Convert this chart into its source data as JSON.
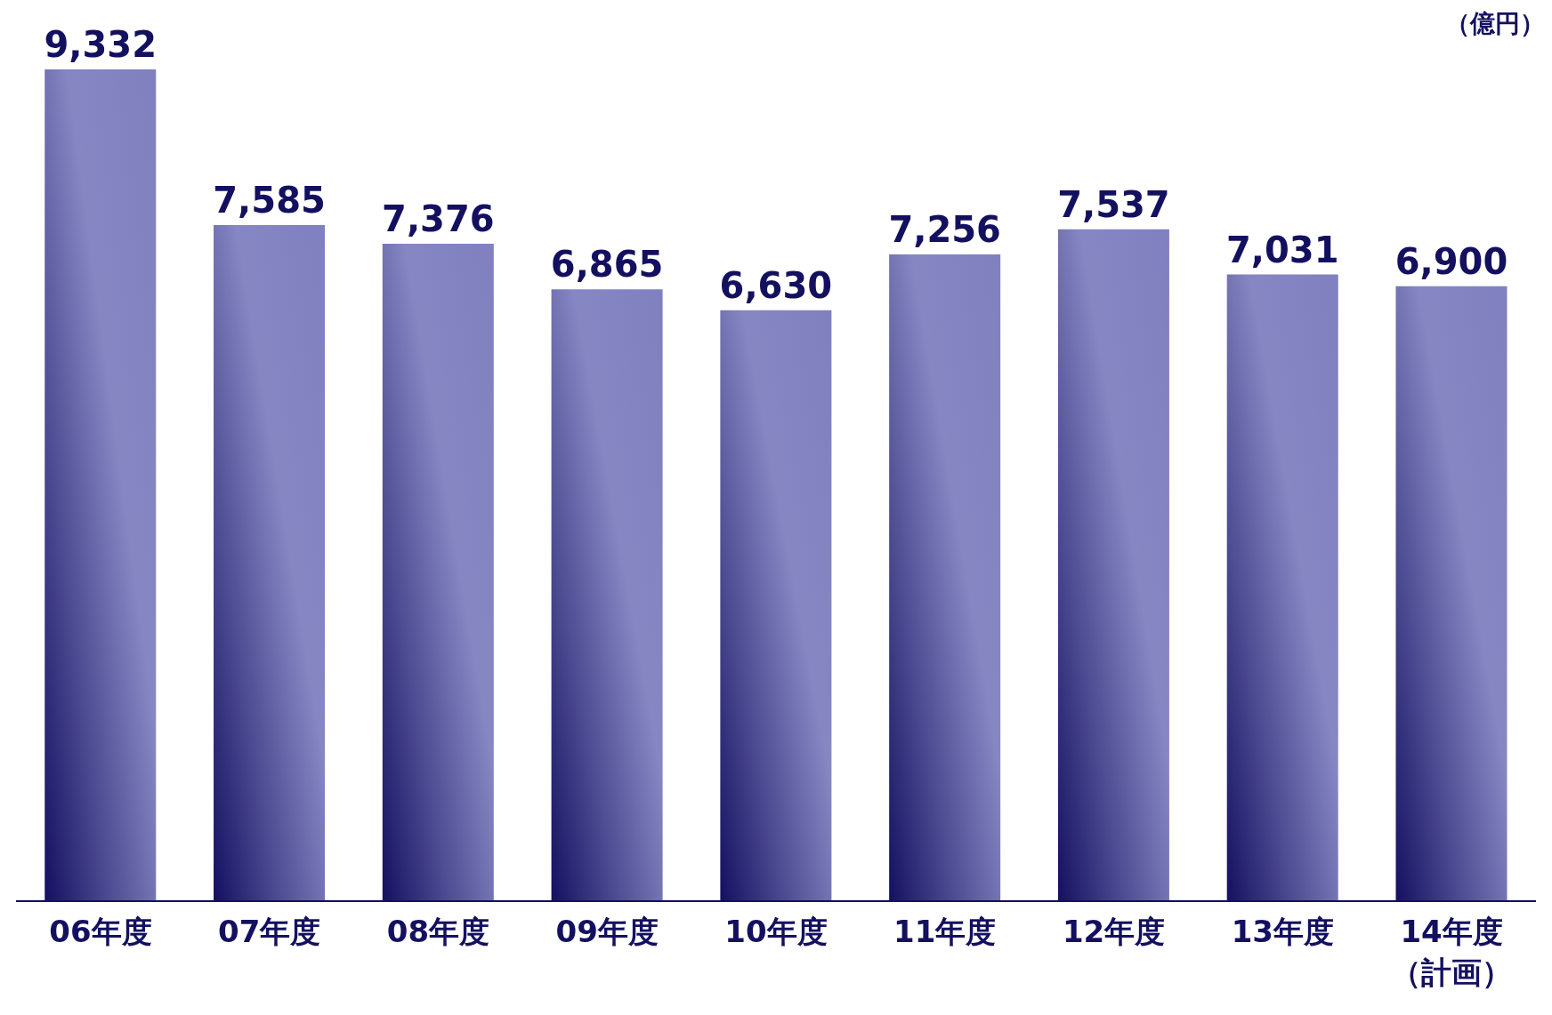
{
  "chart_data": {
    "type": "bar",
    "ylabel": "（億円）",
    "categories": [
      "06年度",
      "07年度",
      "08年度",
      "09年度",
      "10年度",
      "11年度",
      "12年度",
      "13年度",
      "14年度（計画）"
    ],
    "values": [
      9332,
      7585,
      7376,
      6865,
      6630,
      7256,
      7537,
      7031,
      6900
    ],
    "value_labels": [
      "9,332",
      "7,585",
      "7,376",
      "6,865",
      "6,630",
      "7,256",
      "7,537",
      "7,031",
      "6,900"
    ],
    "color": "#8080c0",
    "grid": false,
    "legend": false
  }
}
